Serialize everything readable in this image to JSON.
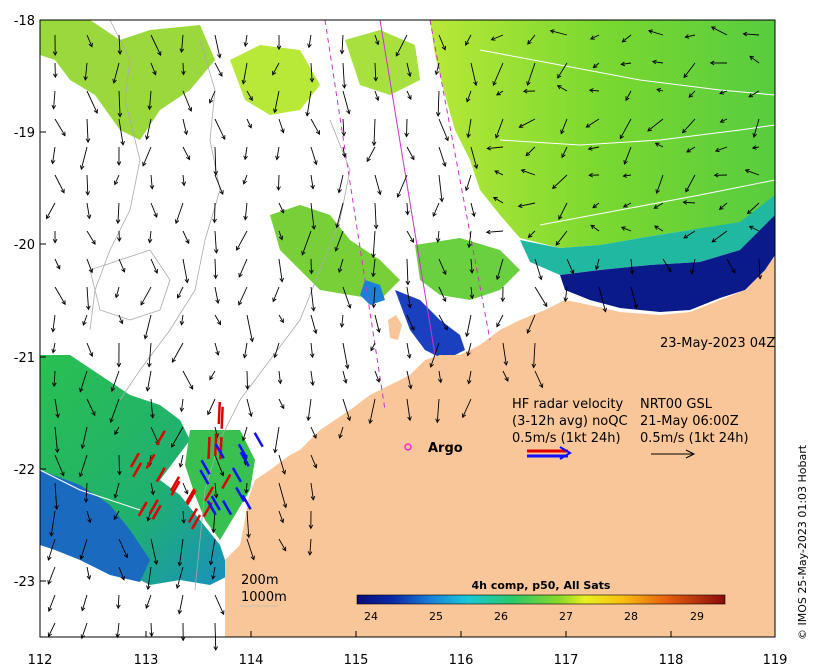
{
  "map": {
    "y_ticks": [
      "-18",
      "-19",
      "-20",
      "-21",
      "-22",
      "-23"
    ],
    "x_ticks": [
      "112",
      "113",
      "114",
      "115",
      "116",
      "117",
      "118",
      "119"
    ],
    "timestamp": "23-May-2023 04Z",
    "argo_label": "Argo",
    "legend": {
      "line1_left": "HF radar velocity",
      "line1_right": "NRT00 GSL",
      "line2_left": "(3-12h avg) noQC",
      "line2_right": "21-May 06:00Z",
      "line3_left": "0.5m/s (1kt 24h)",
      "line3_right": "0.5m/s (1kt 24h)"
    },
    "isobaths": [
      "200m",
      "1000m"
    ],
    "colorbar": {
      "title": "4h comp, p50, All Sats",
      "ticks": [
        "24",
        "25",
        "26",
        "27",
        "28",
        "29"
      ]
    },
    "credit": "© IMOS 25-May-2023 01:03 Hobart",
    "colors": {
      "land": "#f9c699",
      "cold": "#0a1a8a",
      "mid": "#28c85a",
      "warm": "#d7f04a",
      "hf_radar_red": "#e00000",
      "hf_radar_blue": "#1010ff",
      "track_magenta": "#cc33cc"
    }
  }
}
